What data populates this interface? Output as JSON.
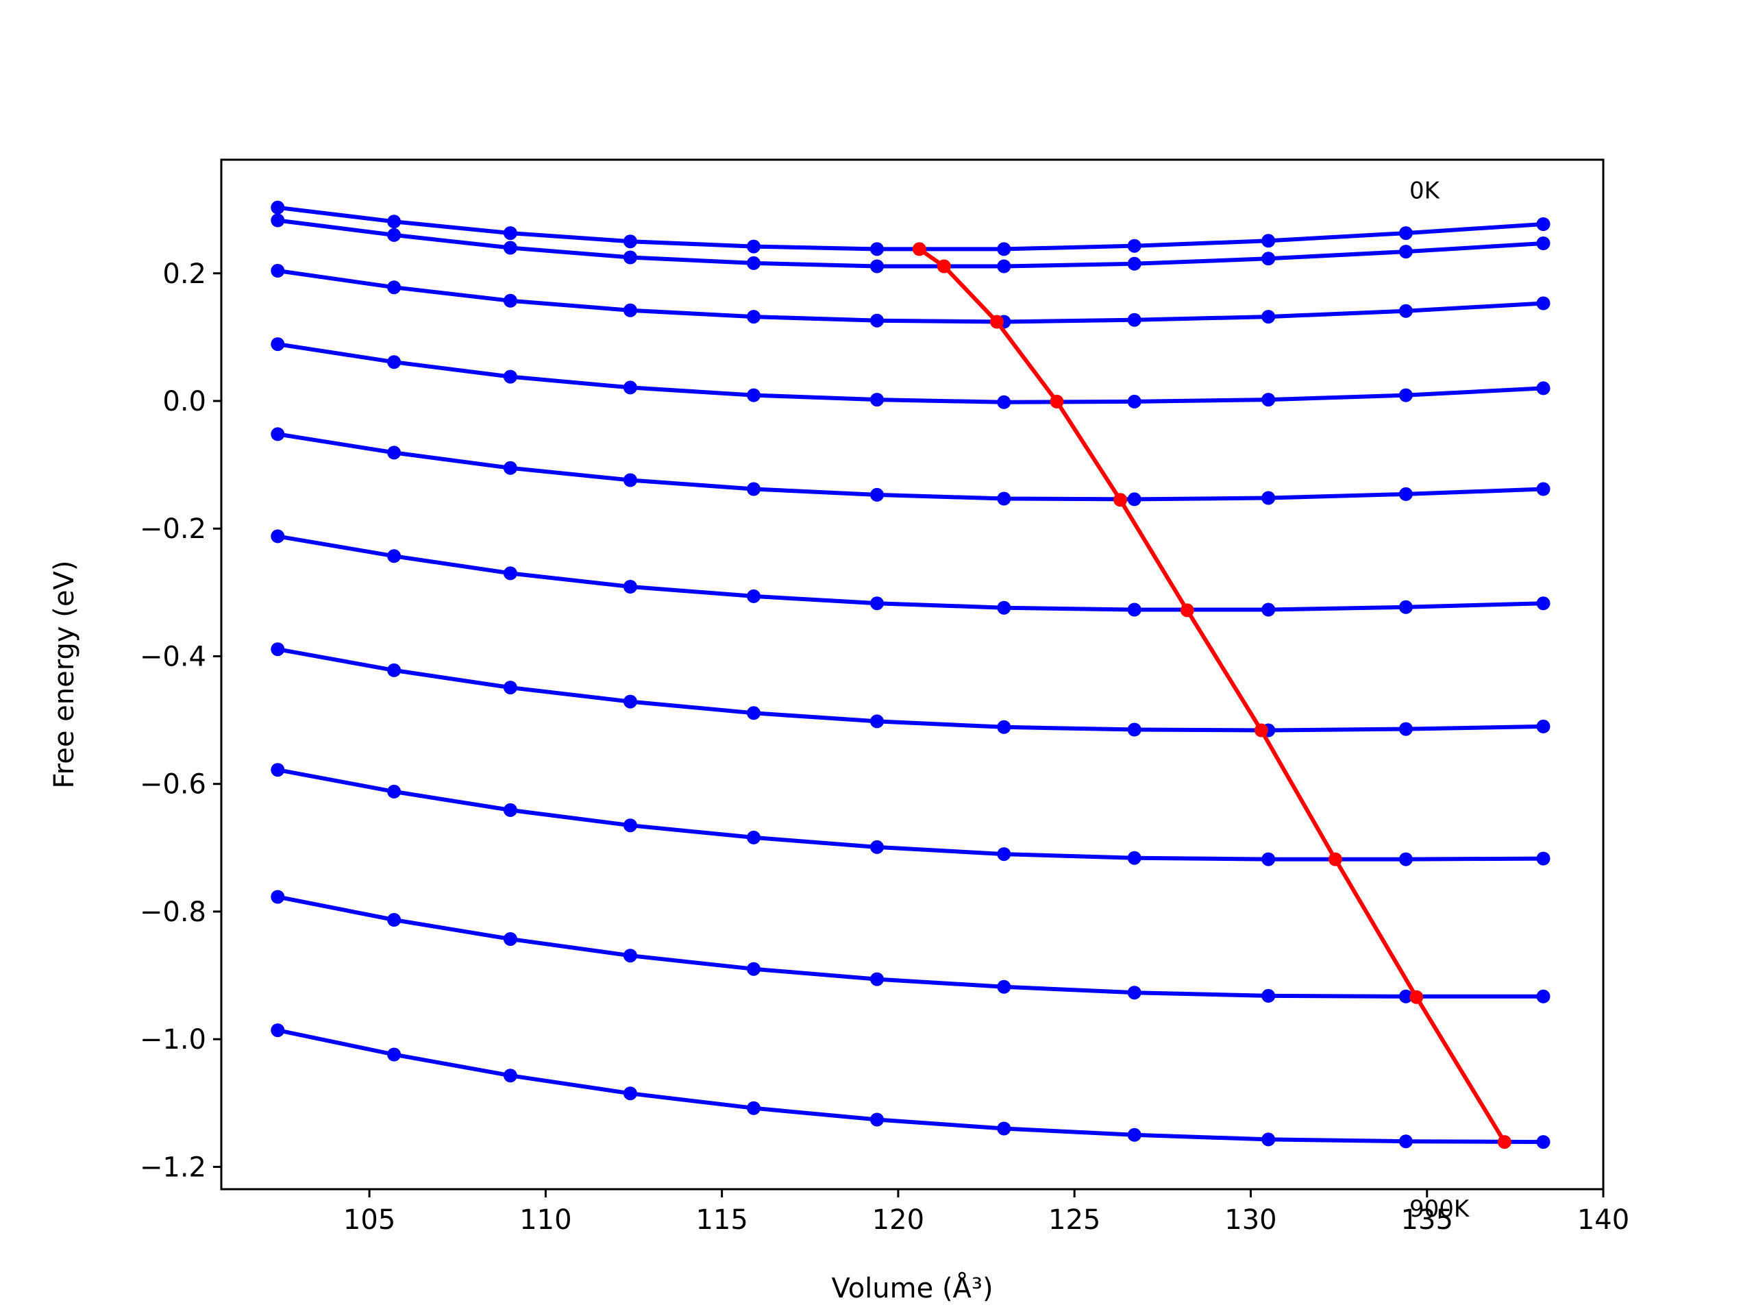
{
  "chart_data": {
    "type": "line",
    "title": "",
    "xlabel": "Volume (Å³)",
    "ylabel": "Free energy (eV)",
    "xlim": [
      100.8,
      140
    ],
    "ylim": [
      -1.235,
      0.378
    ],
    "xticks": [
      105,
      110,
      115,
      120,
      125,
      130,
      135,
      140
    ],
    "yticks": [
      0.2,
      0.0,
      -0.2,
      -0.4,
      -0.6,
      -0.8,
      -1.0,
      -1.2
    ],
    "xtick_labels": [
      "105",
      "110",
      "115",
      "120",
      "125",
      "130",
      "135",
      "140"
    ],
    "ytick_labels": [
      "0.2",
      "0.0",
      "−0.2",
      "−0.4",
      "−0.6",
      "−0.8",
      "−1.0",
      "−1.2"
    ],
    "grid": false,
    "x": [
      102.4,
      105.7,
      109.0,
      112.4,
      115.9,
      119.4,
      123.0,
      126.7,
      130.5,
      134.4,
      138.3
    ],
    "series": [
      {
        "color": "#0000ff",
        "values": [
          0.303,
          0.281,
          0.263,
          0.25,
          0.242,
          0.238,
          0.238,
          0.243,
          0.251,
          0.263,
          0.277
        ]
      },
      {
        "color": "#0000ff",
        "values": [
          0.283,
          0.26,
          0.24,
          0.225,
          0.216,
          0.211,
          0.211,
          0.215,
          0.223,
          0.234,
          0.247
        ]
      },
      {
        "color": "#0000ff",
        "values": [
          0.204,
          0.178,
          0.157,
          0.142,
          0.132,
          0.126,
          0.124,
          0.127,
          0.132,
          0.141,
          0.153
        ]
      },
      {
        "color": "#0000ff",
        "values": [
          0.089,
          0.061,
          0.038,
          0.021,
          0.009,
          0.002,
          -0.002,
          -0.001,
          0.002,
          0.009,
          0.02
        ]
      },
      {
        "color": "#0000ff",
        "values": [
          -0.052,
          -0.081,
          -0.105,
          -0.124,
          -0.138,
          -0.147,
          -0.153,
          -0.154,
          -0.152,
          -0.146,
          -0.138
        ]
      },
      {
        "color": "#0000ff",
        "values": [
          -0.212,
          -0.243,
          -0.27,
          -0.291,
          -0.306,
          -0.317,
          -0.324,
          -0.327,
          -0.327,
          -0.323,
          -0.317
        ]
      },
      {
        "color": "#0000ff",
        "values": [
          -0.389,
          -0.422,
          -0.449,
          -0.471,
          -0.489,
          -0.502,
          -0.511,
          -0.515,
          -0.516,
          -0.514,
          -0.51
        ]
      },
      {
        "color": "#0000ff",
        "values": [
          -0.578,
          -0.612,
          -0.641,
          -0.665,
          -0.684,
          -0.699,
          -0.71,
          -0.716,
          -0.718,
          -0.718,
          -0.717
        ]
      },
      {
        "color": "#0000ff",
        "values": [
          -0.777,
          -0.813,
          -0.843,
          -0.869,
          -0.89,
          -0.906,
          -0.918,
          -0.927,
          -0.932,
          -0.933,
          -0.933
        ]
      },
      {
        "color": "#0000ff",
        "values": [
          -0.986,
          -1.024,
          -1.057,
          -1.085,
          -1.108,
          -1.126,
          -1.14,
          -1.15,
          -1.157,
          -1.16,
          -1.161
        ]
      }
    ],
    "minimum_curve": {
      "color": "#ff0000",
      "x": [
        120.6,
        121.3,
        122.8,
        124.5,
        126.3,
        128.2,
        130.3,
        132.4,
        134.7,
        137.2
      ],
      "y": [
        0.238,
        0.211,
        0.124,
        -0.001,
        -0.155,
        -0.328,
        -0.516,
        -0.718,
        -0.934,
        -1.161
      ]
    },
    "annotations": [
      {
        "text": "0K",
        "x": 134.5,
        "y": 0.33
      },
      {
        "text": "900K",
        "x": 134.5,
        "y": -1.265
      }
    ]
  }
}
